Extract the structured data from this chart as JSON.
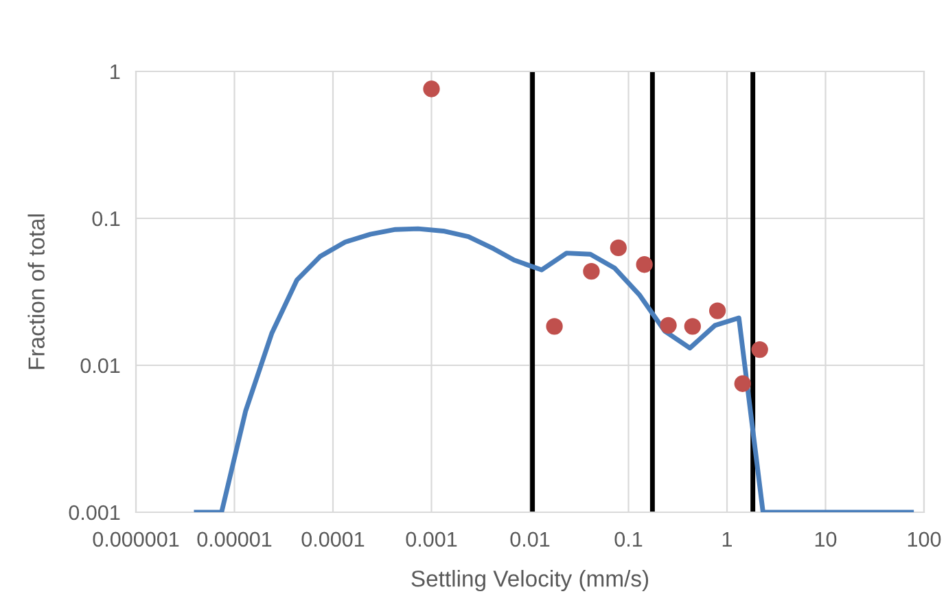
{
  "chart_data": {
    "type": "line",
    "xlabel": "Settling Velocity (mm/s)",
    "ylabel": "Fraction of total",
    "log": "xy",
    "grid": true,
    "xlim": [
      1e-06,
      100
    ],
    "xticks": [
      {
        "value": 1e-06,
        "label": "0.000001"
      },
      {
        "value": 1e-05,
        "label": "0.00001"
      },
      {
        "value": 0.0001,
        "label": "0.0001"
      },
      {
        "value": 0.001,
        "label": "0.001"
      },
      {
        "value": 0.01,
        "label": "0.01"
      },
      {
        "value": 0.1,
        "label": "0.1"
      },
      {
        "value": 1,
        "label": "1"
      },
      {
        "value": 10,
        "label": "10"
      },
      {
        "value": 100,
        "label": "100"
      }
    ],
    "ylim": [
      0.001,
      1
    ],
    "yticks": [
      {
        "value": 0.001,
        "label": "0.001"
      },
      {
        "value": 0.01,
        "label": "0.01"
      },
      {
        "value": 0.1,
        "label": "0.1"
      },
      {
        "value": 1,
        "label": "1"
      }
    ],
    "series": [
      {
        "color": "#4a7ebb",
        "marker": "none",
        "line_style": "solid",
        "x": [
          4.1e-06,
          7.4e-06,
          1.3e-05,
          2.4e-05,
          4.3e-05,
          7.4e-05,
          0.000133,
          0.00024,
          0.00043,
          0.00073,
          0.00132,
          0.00237,
          0.0043,
          0.0069,
          0.0131,
          0.0235,
          0.041,
          0.072,
          0.13,
          0.233,
          0.42,
          0.755,
          1.32,
          2.32,
          74.5
        ],
        "values": [
          0.001,
          0.001,
          0.0049,
          0.0166,
          0.038,
          0.055,
          0.069,
          0.078,
          0.084,
          0.085,
          0.082,
          0.075,
          0.062,
          0.052,
          0.0446,
          0.058,
          0.057,
          0.046,
          0.03,
          0.0171,
          0.0131,
          0.0187,
          0.021,
          0.001,
          0.001
        ]
      },
      {
        "type": "scatter",
        "color": "#c0504d",
        "marker": "circle",
        "x": [
          0.001,
          0.0177,
          0.042,
          0.079,
          0.145,
          0.254,
          0.447,
          0.8,
          1.44,
          2.15
        ],
        "values": [
          0.76,
          0.0184,
          0.0436,
          0.063,
          0.0485,
          0.0187,
          0.0184,
          0.0235,
          0.0075,
          0.0128
        ]
      }
    ],
    "ref_lines": [
      {
        "axis": "x",
        "value": 0.0106,
        "color": "#000000"
      },
      {
        "axis": "x",
        "value": 0.175,
        "color": "#000000"
      },
      {
        "axis": "x",
        "value": 1.83,
        "color": "#000000"
      }
    ]
  }
}
